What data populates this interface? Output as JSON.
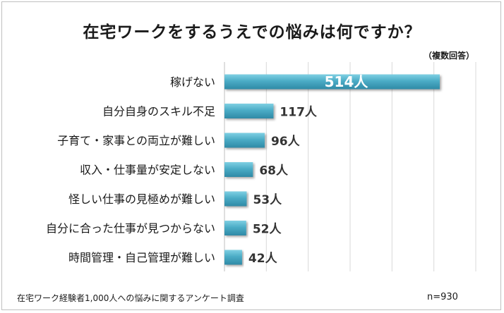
{
  "chart_data": {
    "type": "bar",
    "title": "在宅ワークをするうえでの悩みは何ですか？",
    "subtitle": "（複数回答）",
    "categories": [
      "稼げない",
      "自分自身のスキル不足",
      "子育て・家事との両立が難しい",
      "収入・仕事量が安定しない",
      "怪しい仕事の見極めが難しい",
      "自分に合った仕事が見つからない",
      "時間管理・自己管理が難しい"
    ],
    "values": [
      514,
      117,
      96,
      68,
      53,
      52,
      42
    ],
    "value_labels": [
      "514人",
      "117人",
      "96人",
      "68人",
      "53人",
      "52人",
      "42人"
    ],
    "unit": "人",
    "xlim": [
      0,
      600
    ],
    "grid": true,
    "bar_color": "#4bacc6"
  },
  "footer": {
    "source": "在宅ワーク経験者1,000人への悩みに関するアンケート調査",
    "sample_size": "n=930"
  }
}
